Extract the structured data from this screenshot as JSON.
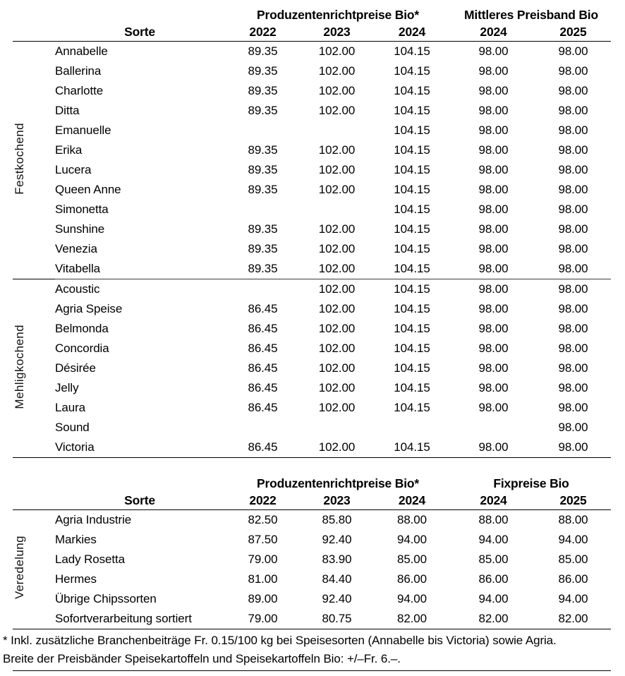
{
  "page": {
    "background_color": "#ffffff",
    "text_color": "#000000",
    "rule_color": "#000000"
  },
  "tables": [
    {
      "sorte_header": "Sorte",
      "col_groups": [
        {
          "label": "Produzentenrichtpreise Bio*",
          "years": [
            "2022",
            "2023",
            "2024"
          ]
        },
        {
          "label": "Mittleres Preisband Bio",
          "years": [
            "2024",
            "2025"
          ]
        }
      ],
      "groups": [
        {
          "label": "Festkochend",
          "rows": [
            {
              "sorte": "Annabelle",
              "values": [
                "89.35",
                "102.00",
                "104.15",
                "98.00",
                "98.00"
              ]
            },
            {
              "sorte": "Ballerina",
              "values": [
                "89.35",
                "102.00",
                "104.15",
                "98.00",
                "98.00"
              ]
            },
            {
              "sorte": "Charlotte",
              "values": [
                "89.35",
                "102.00",
                "104.15",
                "98.00",
                "98.00"
              ]
            },
            {
              "sorte": "Ditta",
              "values": [
                "89.35",
                "102.00",
                "104.15",
                "98.00",
                "98.00"
              ]
            },
            {
              "sorte": "Emanuelle",
              "values": [
                "",
                "",
                "104.15",
                "98.00",
                "98.00"
              ]
            },
            {
              "sorte": "Erika",
              "values": [
                "89.35",
                "102.00",
                "104.15",
                "98.00",
                "98.00"
              ]
            },
            {
              "sorte": "Lucera",
              "values": [
                "89.35",
                "102.00",
                "104.15",
                "98.00",
                "98.00"
              ]
            },
            {
              "sorte": "Queen Anne",
              "values": [
                "89.35",
                "102.00",
                "104.15",
                "98.00",
                "98.00"
              ]
            },
            {
              "sorte": "Simonetta",
              "values": [
                "",
                "",
                "104.15",
                "98.00",
                "98.00"
              ]
            },
            {
              "sorte": "Sunshine",
              "values": [
                "89.35",
                "102.00",
                "104.15",
                "98.00",
                "98.00"
              ]
            },
            {
              "sorte": "Venezia",
              "values": [
                "89.35",
                "102.00",
                "104.15",
                "98.00",
                "98.00"
              ]
            },
            {
              "sorte": "Vitabella",
              "values": [
                "89.35",
                "102.00",
                "104.15",
                "98.00",
                "98.00"
              ]
            }
          ]
        },
        {
          "label": "Mehligkochend",
          "rows": [
            {
              "sorte": "Acoustic",
              "values": [
                "",
                "102.00",
                "104.15",
                "98.00",
                "98.00"
              ]
            },
            {
              "sorte": "Agria Speise",
              "values": [
                "86.45",
                "102.00",
                "104.15",
                "98.00",
                "98.00"
              ]
            },
            {
              "sorte": "Belmonda",
              "values": [
                "86.45",
                "102.00",
                "104.15",
                "98.00",
                "98.00"
              ]
            },
            {
              "sorte": "Concordia",
              "values": [
                "86.45",
                "102.00",
                "104.15",
                "98.00",
                "98.00"
              ]
            },
            {
              "sorte": "Désirée",
              "values": [
                "86.45",
                "102.00",
                "104.15",
                "98.00",
                "98.00"
              ]
            },
            {
              "sorte": "Jelly",
              "values": [
                "86.45",
                "102.00",
                "104.15",
                "98.00",
                "98.00"
              ]
            },
            {
              "sorte": "Laura",
              "values": [
                "86.45",
                "102.00",
                "104.15",
                "98.00",
                "98.00"
              ]
            },
            {
              "sorte": "Sound",
              "values": [
                "",
                "",
                "",
                "",
                "98.00"
              ]
            },
            {
              "sorte": "Victoria",
              "values": [
                "86.45",
                "102.00",
                "104.15",
                "98.00",
                "98.00"
              ]
            }
          ]
        }
      ]
    },
    {
      "sorte_header": "Sorte",
      "col_groups": [
        {
          "label": "Produzentenrichtpreise Bio*",
          "years": [
            "2022",
            "2023",
            "2024"
          ]
        },
        {
          "label": "Fixpreise Bio",
          "years": [
            "2024",
            "2025"
          ]
        }
      ],
      "groups": [
        {
          "label": "Veredelung",
          "rows": [
            {
              "sorte": "Agria Industrie",
              "values": [
                "82.50",
                "85.80",
                "88.00",
                "88.00",
                "88.00"
              ]
            },
            {
              "sorte": "Markies",
              "values": [
                "87.50",
                "92.40",
                "94.00",
                "94.00",
                "94.00"
              ]
            },
            {
              "sorte": "Lady Rosetta",
              "values": [
                "79.00",
                "83.90",
                "85.00",
                "85.00",
                "85.00"
              ]
            },
            {
              "sorte": "Hermes",
              "values": [
                "81.00",
                "84.40",
                "86.00",
                "86.00",
                "86.00"
              ]
            },
            {
              "sorte": "Übrige Chipssorten",
              "values": [
                "89.00",
                "92.40",
                "94.00",
                "94.00",
                "94.00"
              ]
            },
            {
              "sorte": "Sofortverarbeitung sortiert",
              "values": [
                "79.00",
                "80.75",
                "82.00",
                "82.00",
                "82.00"
              ]
            }
          ]
        }
      ]
    }
  ],
  "footnote": {
    "line1": "* Inkl. zusätzliche Branchenbeiträge Fr. 0.15/100 kg bei Speisesorten (Annabelle bis Victoria) sowie Agria.",
    "line2": "Breite der Preisbänder Speisekartoffeln und Speisekartoffeln Bio: +/–Fr. 6.–."
  }
}
